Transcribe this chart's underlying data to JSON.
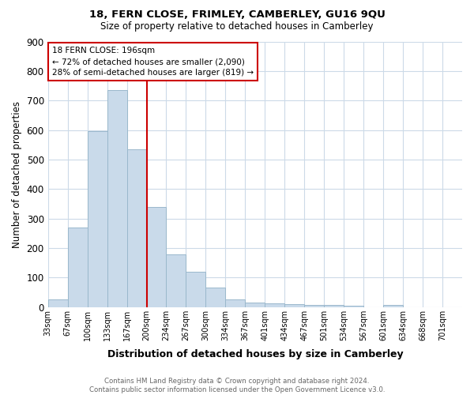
{
  "title1": "18, FERN CLOSE, FRIMLEY, CAMBERLEY, GU16 9QU",
  "title2": "Size of property relative to detached houses in Camberley",
  "xlabel": "Distribution of detached houses by size in Camberley",
  "ylabel": "Number of detached properties",
  "footnote": "Contains HM Land Registry data © Crown copyright and database right 2024.\nContains public sector information licensed under the Open Government Licence v3.0.",
  "bin_labels": [
    "33sqm",
    "67sqm",
    "100sqm",
    "133sqm",
    "167sqm",
    "200sqm",
    "234sqm",
    "267sqm",
    "300sqm",
    "334sqm",
    "367sqm",
    "401sqm",
    "434sqm",
    "467sqm",
    "501sqm",
    "534sqm",
    "567sqm",
    "601sqm",
    "634sqm",
    "668sqm",
    "701sqm"
  ],
  "bar_heights": [
    27,
    270,
    595,
    735,
    535,
    340,
    178,
    119,
    67,
    25,
    15,
    13,
    10,
    8,
    8,
    5,
    0,
    8,
    0,
    0,
    0
  ],
  "bar_color": "#c9daea",
  "bar_edgecolor": "#9ab8cc",
  "vline_color": "#cc0000",
  "vline_x_data": 196,
  "annotation_text": "18 FERN CLOSE: 196sqm\n← 72% of detached houses are smaller (2,090)\n28% of semi-detached houses are larger (819) →",
  "annotation_box_color": "#ffffff",
  "annotation_box_edgecolor": "#cc0000",
  "ylim": [
    0,
    900
  ],
  "yticks": [
    0,
    100,
    200,
    300,
    400,
    500,
    600,
    700,
    800,
    900
  ],
  "bin_width": 33,
  "background_color": "#ffffff",
  "grid_color": "#ccdae8"
}
